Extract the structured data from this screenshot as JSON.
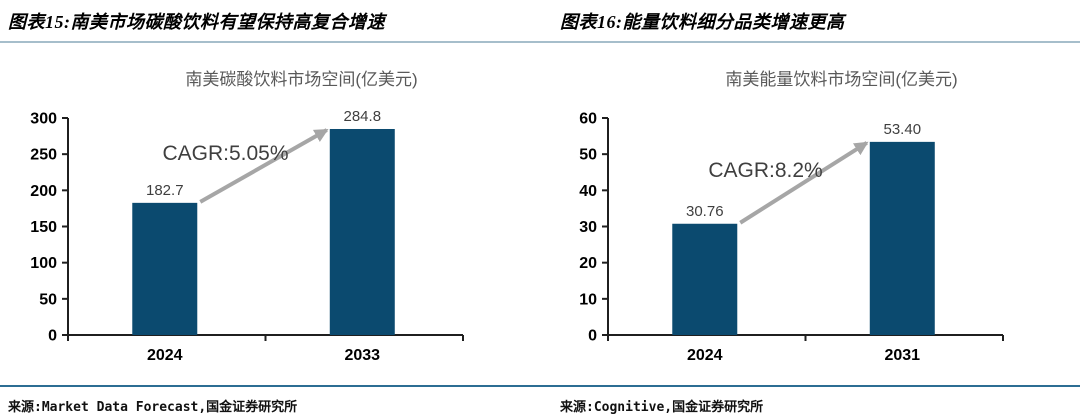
{
  "colors": {
    "bar": "#0b4a6f",
    "arrow": "#a6a6a6",
    "axis": "#1f1f1f",
    "tick_label": "#000000",
    "value_label": "#3f3f3f",
    "annotation": "#3f3f3f",
    "chart_title": "#595959",
    "header_rule": "#a6becb",
    "footer_rule": "#2c6d93"
  },
  "figures": [
    {
      "header": "图表15:南美市场碳酸饮料有望保持高复合增速",
      "source": "来源:Market Data Forecast,国金证券研究所"
    },
    {
      "header": "图表16:能量饮料细分品类增速更高",
      "source": "来源:Cognitive,国金证券研究所"
    }
  ],
  "chart_data": [
    {
      "type": "bar",
      "title": "南美碳酸饮料市场空间(亿美元)",
      "categories": [
        "2024",
        "2033"
      ],
      "values": [
        182.7,
        284.8
      ],
      "value_labels": [
        "182.7",
        "284.8"
      ],
      "annotation": "CAGR:5.05%",
      "xlabel": "",
      "ylabel": "",
      "ylim": [
        0,
        300
      ],
      "ytick_step": 50,
      "grid": false,
      "legend": "none"
    },
    {
      "type": "bar",
      "title": "南美能量饮料市场空间(亿美元)",
      "categories": [
        "2024",
        "2031"
      ],
      "values": [
        30.76,
        53.4
      ],
      "value_labels": [
        "30.76",
        "53.40"
      ],
      "annotation": "CAGR:8.2%",
      "xlabel": "",
      "ylabel": "",
      "ylim": [
        0,
        60
      ],
      "ytick_step": 10,
      "grid": false,
      "legend": "none"
    }
  ]
}
